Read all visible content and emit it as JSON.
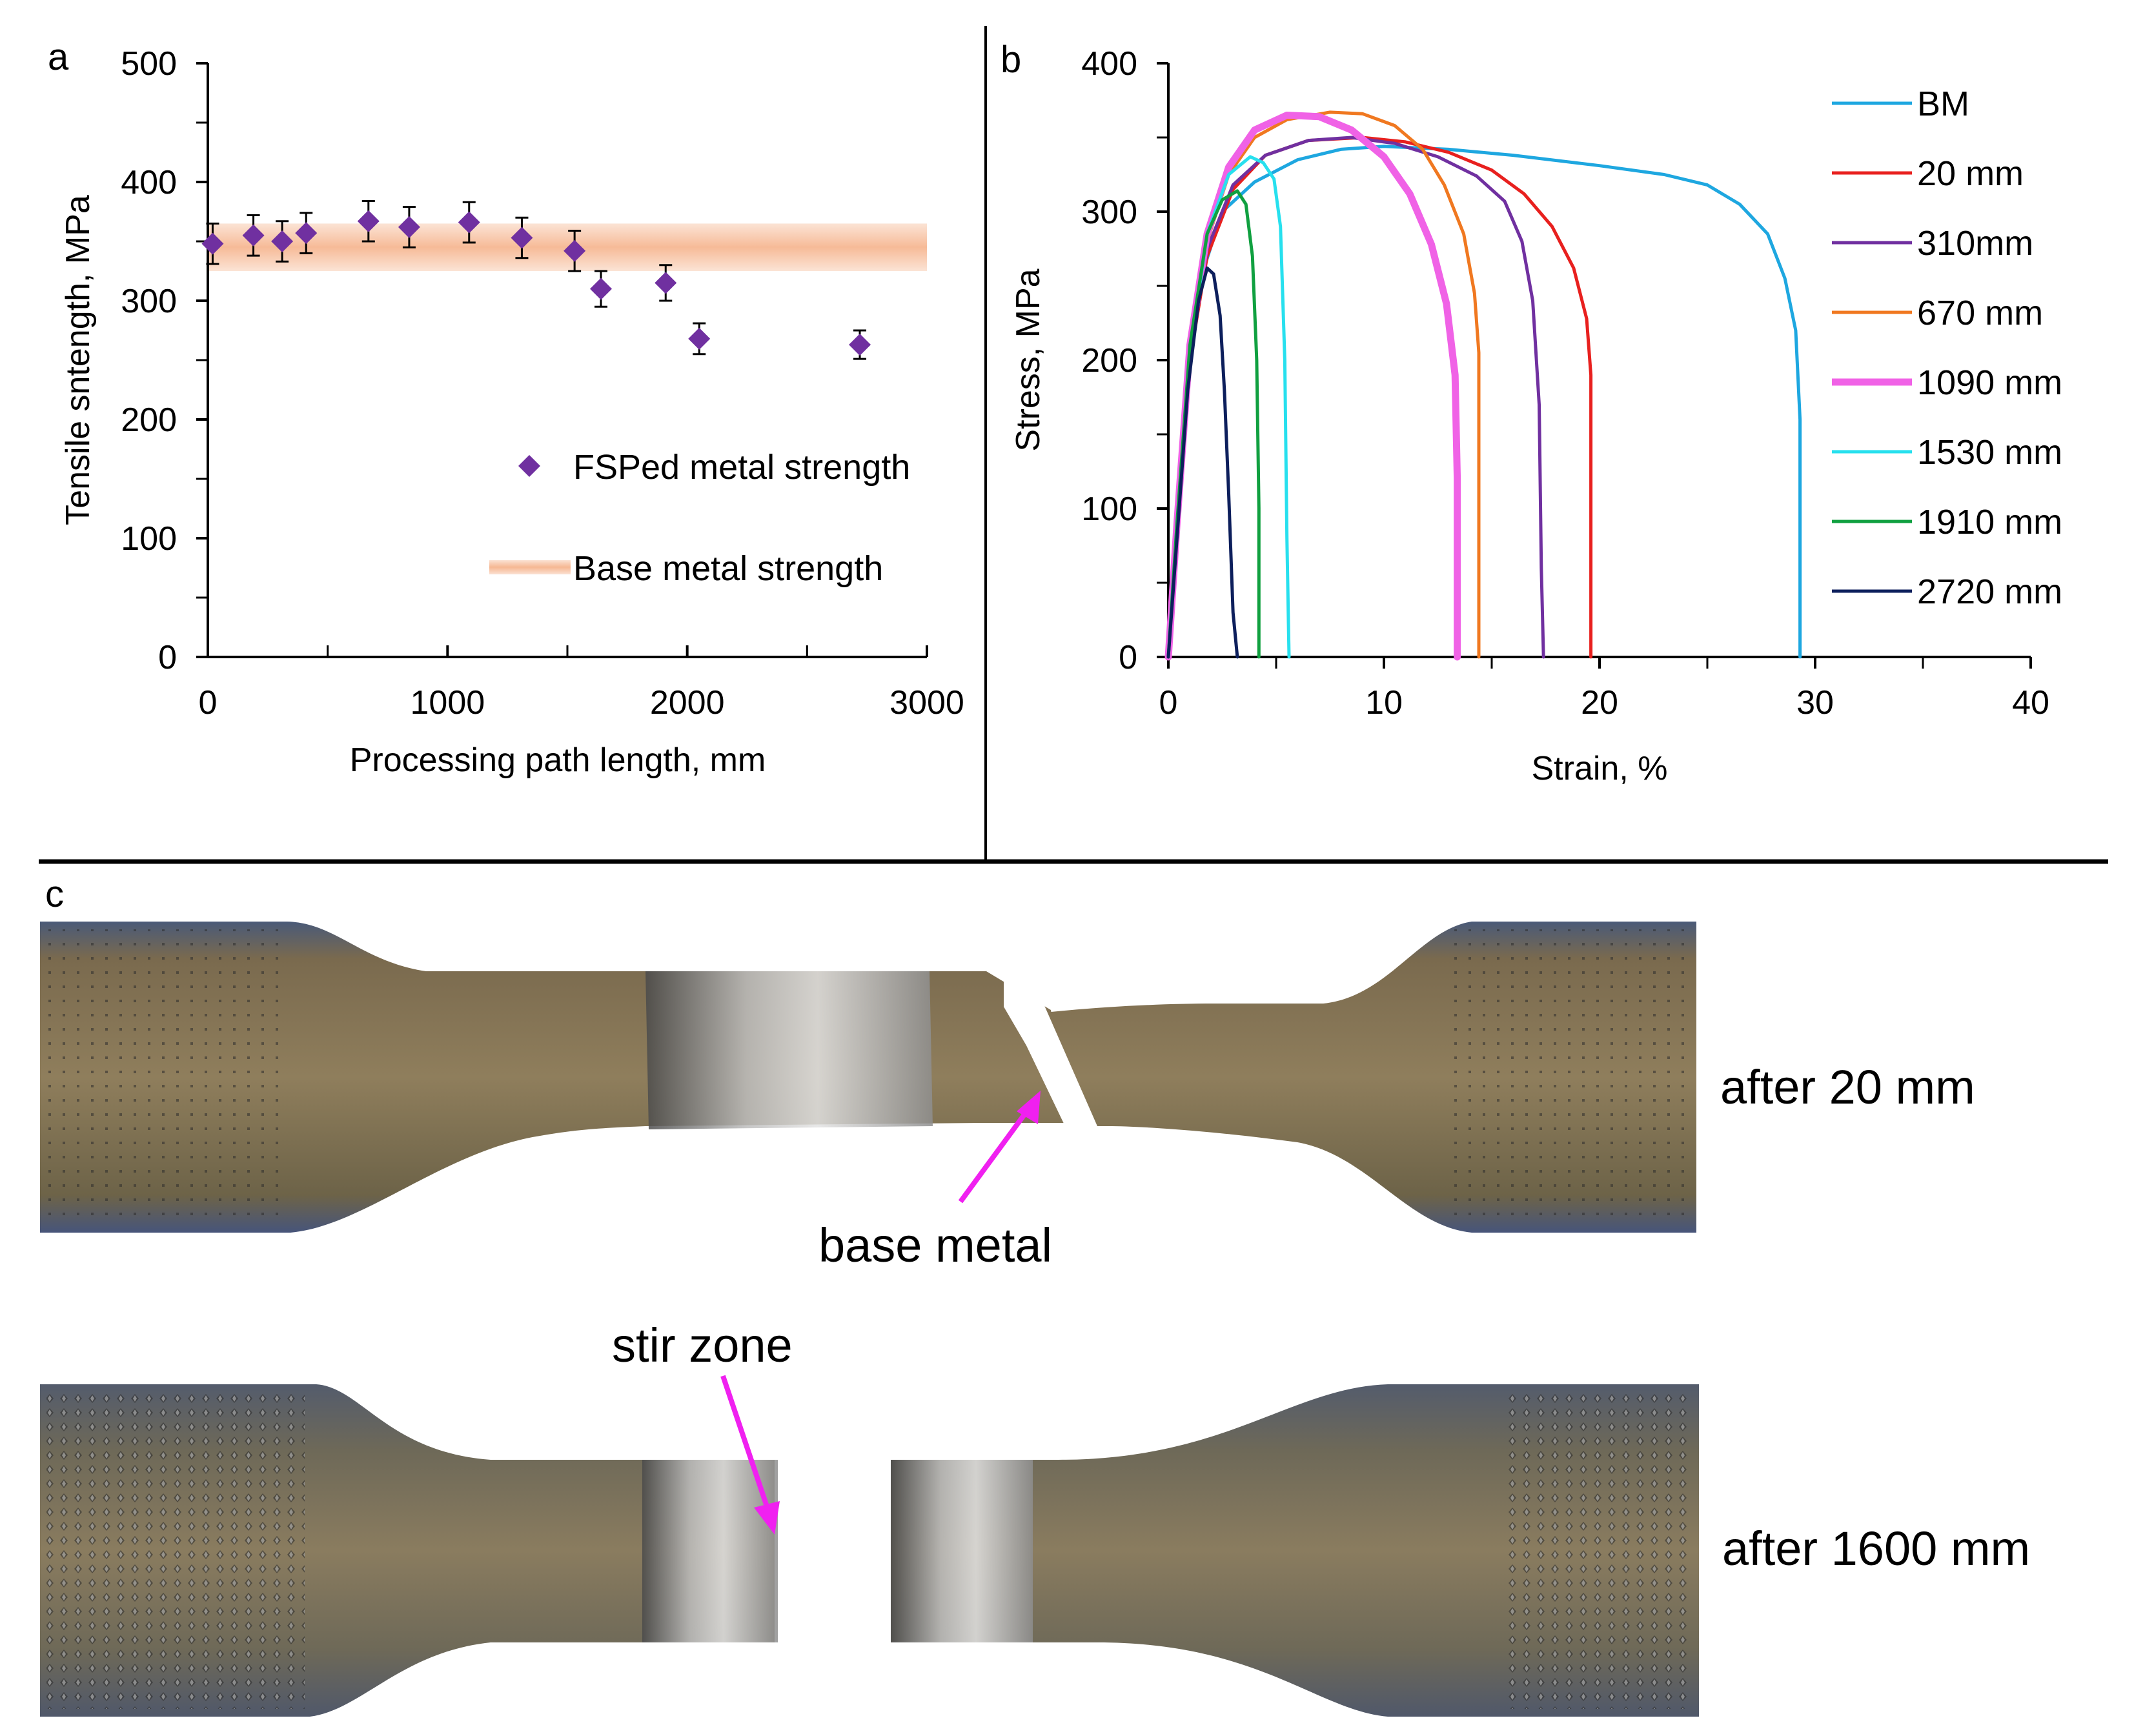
{
  "panels": {
    "a": "a",
    "b": "b",
    "c": "c"
  },
  "chart_data": [
    {
      "id": "a",
      "type": "scatter",
      "title": "",
      "xlabel": "Processing path length, mm",
      "ylabel": "Tensile sntength, MPa",
      "xlim": [
        0,
        3000
      ],
      "ylim": [
        0,
        500
      ],
      "xticks": [
        0,
        1000,
        2000,
        3000
      ],
      "yticks": [
        0,
        100,
        200,
        300,
        400,
        500
      ],
      "xtick_labels": [
        "0",
        "1000",
        "2000",
        "3000"
      ],
      "ytick_labels": [
        "0",
        "100",
        "200",
        "300",
        "400",
        "500"
      ],
      "grid": false,
      "legend": {
        "position": "center-right",
        "entries": [
          "FSPed metal strength",
          "Base metal strength"
        ]
      },
      "series": [
        {
          "name": "FSPed metal strength",
          "marker": "diamond",
          "color": "#7030a0",
          "x": [
            20,
            190,
            310,
            410,
            670,
            840,
            1090,
            1310,
            1530,
            1640,
            1910,
            2050,
            2720
          ],
          "y": [
            348,
            355,
            350,
            357,
            367,
            362,
            366,
            353,
            342,
            310,
            315,
            268,
            263
          ],
          "error": [
            17,
            17,
            17,
            17,
            17,
            17,
            17,
            17,
            17,
            15,
            15,
            13,
            12
          ]
        }
      ],
      "band": {
        "name": "Base metal strength",
        "color": "#f8c6a6",
        "y_center": 345,
        "y_halfwidth": 20,
        "x_range": [
          0,
          3000
        ]
      }
    },
    {
      "id": "b",
      "type": "line",
      "title": "",
      "xlabel": "Strain, %",
      "ylabel": "Stress, MPa",
      "xlim": [
        0,
        40
      ],
      "ylim": [
        0,
        400
      ],
      "xticks": [
        0,
        10,
        20,
        30,
        40
      ],
      "yticks": [
        0,
        100,
        200,
        300,
        400
      ],
      "xtick_labels": [
        "0",
        "10",
        "20",
        "30",
        "40"
      ],
      "ytick_labels": [
        "0",
        "100",
        "200",
        "300",
        "400"
      ],
      "grid": false,
      "legend": {
        "position": "right"
      },
      "series": [
        {
          "name": "BM",
          "color": "#1ea7e0",
          "width": 5,
          "points": [
            [
              0,
              0
            ],
            [
              0.3,
              70
            ],
            [
              0.8,
              180
            ],
            [
              1.5,
              255
            ],
            [
              2.5,
              300
            ],
            [
              4,
              320
            ],
            [
              6,
              335
            ],
            [
              8,
              342
            ],
            [
              10,
              344
            ],
            [
              13,
              342
            ],
            [
              16,
              338
            ],
            [
              20,
              331
            ],
            [
              23,
              325
            ],
            [
              25,
              318
            ],
            [
              26.5,
              305
            ],
            [
              27.8,
              285
            ],
            [
              28.6,
              255
            ],
            [
              29.1,
              220
            ],
            [
              29.3,
              160
            ],
            [
              29.3,
              0
            ]
          ]
        },
        {
          "name": "20 mm",
          "color": "#e8201e",
          "width": 5,
          "points": [
            [
              0,
              0
            ],
            [
              0.4,
              80
            ],
            [
              1,
              200
            ],
            [
              1.8,
              270
            ],
            [
              3,
              315
            ],
            [
              4.5,
              338
            ],
            [
              6.5,
              348
            ],
            [
              9,
              350
            ],
            [
              11,
              347
            ],
            [
              13,
              340
            ],
            [
              15,
              328
            ],
            [
              16.5,
              312
            ],
            [
              17.8,
              290
            ],
            [
              18.8,
              262
            ],
            [
              19.4,
              228
            ],
            [
              19.6,
              190
            ],
            [
              19.6,
              0
            ]
          ]
        },
        {
          "name": "310mm",
          "color": "#7030a0",
          "width": 5,
          "points": [
            [
              0,
              0
            ],
            [
              0.4,
              80
            ],
            [
              1,
              200
            ],
            [
              1.8,
              275
            ],
            [
              3,
              318
            ],
            [
              4.5,
              338
            ],
            [
              6.5,
              348
            ],
            [
              8.5,
              350
            ],
            [
              10.5,
              346
            ],
            [
              12.5,
              337
            ],
            [
              14.3,
              324
            ],
            [
              15.6,
              307
            ],
            [
              16.4,
              280
            ],
            [
              16.9,
              240
            ],
            [
              17.2,
              170
            ],
            [
              17.3,
              60
            ],
            [
              17.4,
              0
            ]
          ]
        },
        {
          "name": "670 mm",
          "color": "#f07820",
          "width": 5,
          "points": [
            [
              0,
              0
            ],
            [
              0.4,
              85
            ],
            [
              1,
              205
            ],
            [
              1.8,
              280
            ],
            [
              2.8,
              325
            ],
            [
              4,
              350
            ],
            [
              5.5,
              362
            ],
            [
              7.5,
              367
            ],
            [
              9,
              366
            ],
            [
              10.5,
              358
            ],
            [
              11.8,
              342
            ],
            [
              12.8,
              318
            ],
            [
              13.7,
              285
            ],
            [
              14.2,
              245
            ],
            [
              14.4,
              205
            ],
            [
              14.4,
              0
            ]
          ]
        },
        {
          "name": "1090 mm",
          "color": "#f062e6",
          "width": 11,
          "points": [
            [
              0,
              0
            ],
            [
              0.4,
              90
            ],
            [
              1,
              210
            ],
            [
              1.8,
              285
            ],
            [
              2.8,
              330
            ],
            [
              4,
              355
            ],
            [
              5.5,
              365
            ],
            [
              7,
              364
            ],
            [
              8.5,
              355
            ],
            [
              10,
              337
            ],
            [
              11.2,
              312
            ],
            [
              12.2,
              278
            ],
            [
              12.9,
              238
            ],
            [
              13.3,
              190
            ],
            [
              13.4,
              120
            ],
            [
              13.4,
              0
            ]
          ]
        },
        {
          "name": "1530 mm",
          "color": "#27e0ee",
          "width": 5,
          "points": [
            [
              0,
              0
            ],
            [
              0.4,
              90
            ],
            [
              1,
              205
            ],
            [
              1.8,
              285
            ],
            [
              2.8,
              325
            ],
            [
              3.8,
              337
            ],
            [
              4.4,
              333
            ],
            [
              4.9,
              322
            ],
            [
              5.2,
              290
            ],
            [
              5.4,
              200
            ],
            [
              5.5,
              80
            ],
            [
              5.6,
              0
            ]
          ]
        },
        {
          "name": "1910 mm",
          "color": "#10a040",
          "width": 5,
          "points": [
            [
              0,
              0
            ],
            [
              0.4,
              90
            ],
            [
              1,
              210
            ],
            [
              1.8,
              285
            ],
            [
              2.5,
              308
            ],
            [
              3.2,
              314
            ],
            [
              3.6,
              305
            ],
            [
              3.9,
              270
            ],
            [
              4.1,
              200
            ],
            [
              4.2,
              100
            ],
            [
              4.2,
              0
            ]
          ]
        },
        {
          "name": "2720 mm",
          "color": "#0d1f5c",
          "width": 5,
          "points": [
            [
              0,
              0
            ],
            [
              0.4,
              80
            ],
            [
              0.9,
              180
            ],
            [
              1.4,
              240
            ],
            [
              1.8,
              262
            ],
            [
              2.1,
              258
            ],
            [
              2.4,
              230
            ],
            [
              2.6,
              180
            ],
            [
              2.8,
              110
            ],
            [
              3,
              30
            ],
            [
              3.2,
              0
            ]
          ]
        }
      ]
    }
  ],
  "photos": {
    "specimen_top_label": "after 20 mm",
    "specimen_bottom_label": "after 1600 mm",
    "arrow_top_label": "base metal",
    "arrow_bottom_label": "stir zone"
  }
}
